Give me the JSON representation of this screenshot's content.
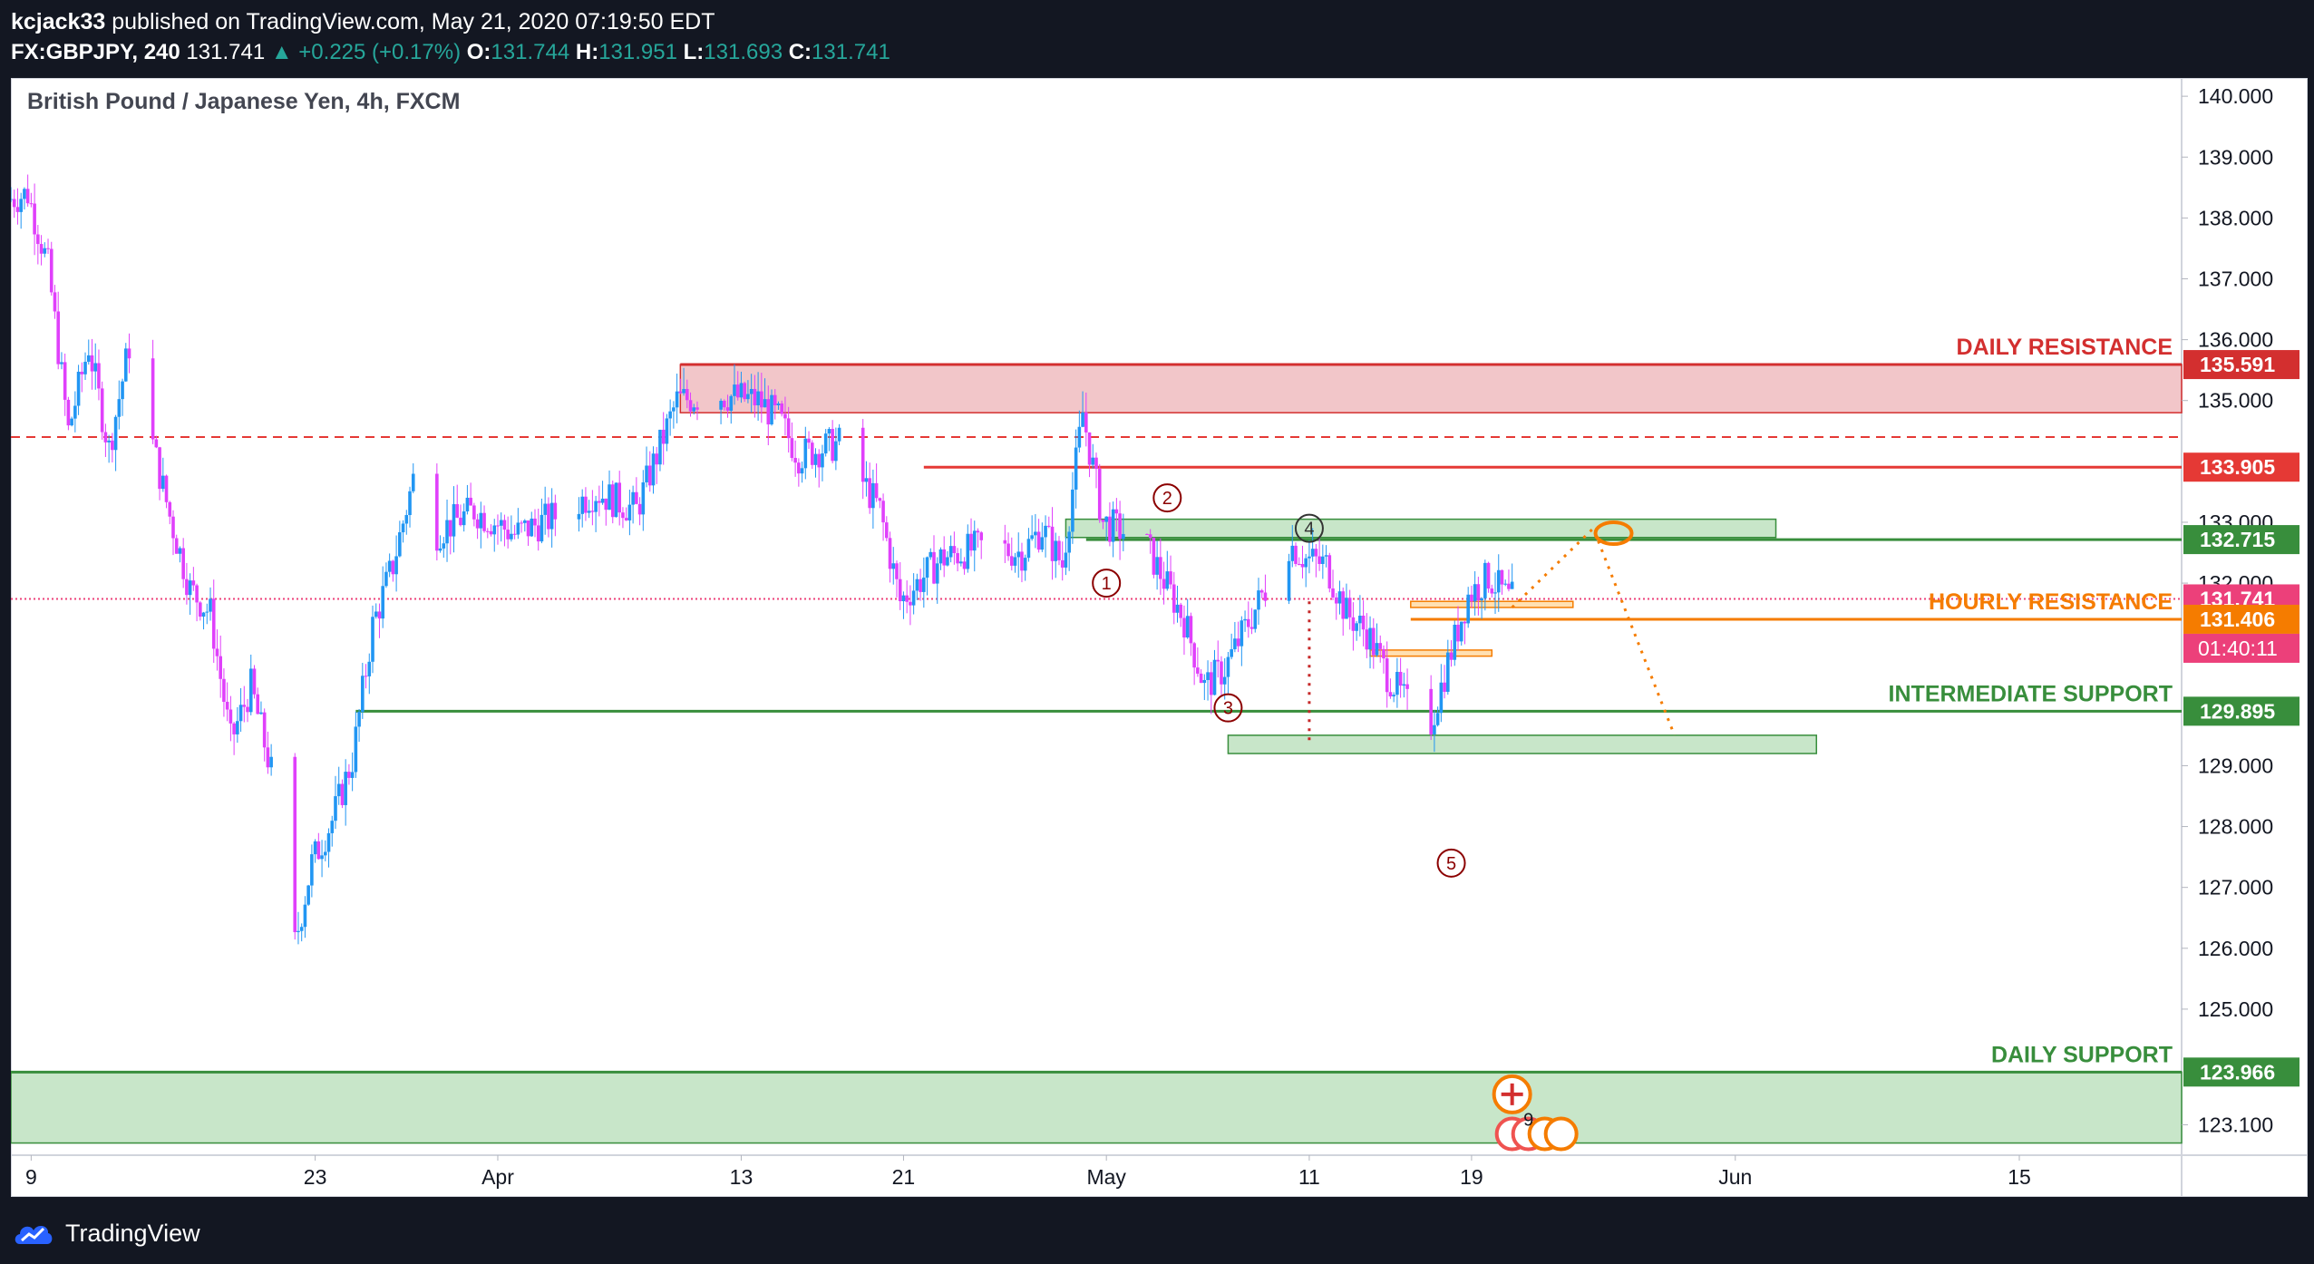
{
  "publish_line": {
    "author": "kcjack33",
    "rest": " published on TradingView.com, May 21, 2020 07:19:50 EDT"
  },
  "symbol_line": {
    "symbol": "FX:GBPJPY, 240",
    "last": "131.741",
    "change": "▲ +0.225 (+0.17%)",
    "o_label": "O:",
    "o_val": "131.744",
    "h_label": "H:",
    "h_val": "131.951",
    "l_label": "L:",
    "l_val": "131.693",
    "c_label": "C:",
    "c_val": "131.741"
  },
  "footer": {
    "brand": "TradingView"
  },
  "chart_data": {
    "type": "candlestick",
    "title": "British Pound / Japanese Yen, 4h, FXCM",
    "y_range": [
      122.6,
      140.3
    ],
    "y_ticks": [
      "140.000",
      "139.000",
      "138.000",
      "137.000",
      "136.000",
      "135.000",
      "133.000",
      "132.000",
      "129.000",
      "128.000",
      "127.000",
      "126.000",
      "125.000",
      "123.100"
    ],
    "x_range": [
      "2020-03-08",
      "2020-06-23"
    ],
    "x_ticks": [
      {
        "date": "2020-03-09",
        "label": "9"
      },
      {
        "date": "2020-03-23",
        "label": "23"
      },
      {
        "date": "2020-04-01",
        "label": "Apr"
      },
      {
        "date": "2020-04-13",
        "label": "13"
      },
      {
        "date": "2020-04-21",
        "label": "21"
      },
      {
        "date": "2020-05-01",
        "label": "May"
      },
      {
        "date": "2020-05-11",
        "label": "11"
      },
      {
        "date": "2020-05-19",
        "label": "19"
      },
      {
        "date": "2020-06-01",
        "label": "Jun"
      },
      {
        "date": "2020-06-15",
        "label": "15"
      }
    ],
    "price_path": [
      [
        "2020-03-08",
        138.3
      ],
      [
        "2020-03-09",
        138.4
      ],
      [
        "2020-03-10",
        137.2
      ],
      [
        "2020-03-11",
        134.5
      ],
      [
        "2020-03-12",
        135.9
      ],
      [
        "2020-03-13",
        134.2
      ],
      [
        "2020-03-14",
        135.9
      ],
      [
        "2020-03-16",
        133.1
      ],
      [
        "2020-03-17",
        131.9
      ],
      [
        "2020-03-18",
        131.5
      ],
      [
        "2020-03-19",
        129.4
      ],
      [
        "2020-03-20",
        130.3
      ],
      [
        "2020-03-21",
        128.9
      ],
      [
        "2020-03-22",
        125.8
      ],
      [
        "2020-03-23",
        127.4
      ],
      [
        "2020-03-24",
        128.1
      ],
      [
        "2020-03-25",
        129.1
      ],
      [
        "2020-03-26",
        131.3
      ],
      [
        "2020-03-27",
        132.3
      ],
      [
        "2020-03-28",
        133.7
      ],
      [
        "2020-03-29",
        132.8
      ],
      [
        "2020-03-31",
        133.2
      ],
      [
        "2020-04-02",
        132.8
      ],
      [
        "2020-04-04",
        133.1
      ],
      [
        "2020-04-06",
        133.5
      ],
      [
        "2020-04-08",
        133.2
      ],
      [
        "2020-04-10",
        135.0
      ],
      [
        "2020-04-12",
        135.1
      ],
      [
        "2020-04-14",
        135.0
      ],
      [
        "2020-04-15",
        134.7
      ],
      [
        "2020-04-16",
        134.1
      ],
      [
        "2020-04-18",
        134.3
      ],
      [
        "2020-04-20",
        133.2
      ],
      [
        "2020-04-21",
        131.7
      ],
      [
        "2020-04-23",
        132.4
      ],
      [
        "2020-04-25",
        132.6
      ],
      [
        "2020-04-27",
        132.5
      ],
      [
        "2020-04-28",
        132.9
      ],
      [
        "2020-04-29",
        132.3
      ],
      [
        "2020-04-30",
        134.8
      ],
      [
        "2020-05-01",
        133.0
      ],
      [
        "2020-05-03",
        132.7
      ],
      [
        "2020-05-05",
        131.4
      ],
      [
        "2020-05-06",
        130.3
      ],
      [
        "2020-05-07",
        130.6
      ],
      [
        "2020-05-09",
        131.9
      ],
      [
        "2020-05-10",
        132.7
      ],
      [
        "2020-05-11",
        132.4
      ],
      [
        "2020-05-12",
        132.3
      ],
      [
        "2020-05-13",
        131.5
      ],
      [
        "2020-05-14",
        131.2
      ],
      [
        "2020-05-15",
        130.5
      ],
      [
        "2020-05-16",
        130.0
      ],
      [
        "2020-05-17",
        129.5
      ],
      [
        "2020-05-18",
        130.7
      ],
      [
        "2020-05-19",
        131.8
      ],
      [
        "2020-05-20",
        132.1
      ],
      [
        "2020-05-21",
        131.741
      ]
    ],
    "zones": [
      {
        "name": "daily-resistance-zone",
        "from": "2020-04-10",
        "to": "2020-06-23",
        "y1": 134.8,
        "y2": 135.591,
        "color": "#f2c6c9",
        "border": "#d32f2f"
      },
      {
        "name": "intermediate-resistance-zone",
        "from": "2020-04-29",
        "to": "2020-06-03",
        "y1": 132.75,
        "y2": 133.05,
        "color": "#c8e6c9",
        "border": "#388e3c"
      },
      {
        "name": "lower-support-zone",
        "from": "2020-05-07",
        "to": "2020-06-05",
        "y1": 129.2,
        "y2": 129.5,
        "color": "#c8e6c9",
        "border": "#388e3c"
      },
      {
        "name": "daily-support-zone",
        "from": "2020-03-08",
        "to": "2020-06-23",
        "y1": 122.8,
        "y2": 123.966,
        "color": "#c8e6c9",
        "border": "#388e3c"
      },
      {
        "name": "hourly-resistance-box-1",
        "from": "2020-05-16",
        "to": "2020-05-24",
        "y1": 131.6,
        "y2": 131.7,
        "color": "#ffe0b2",
        "border": "#f57c00"
      },
      {
        "name": "hourly-resistance-box-2",
        "from": "2020-05-14",
        "to": "2020-05-20",
        "y1": 130.8,
        "y2": 130.9,
        "color": "#ffe0b2",
        "border": "#f57c00"
      }
    ],
    "levels": [
      {
        "name": "daily-resistance-line",
        "y": 135.591,
        "from": "2020-04-10",
        "to": "2020-06-23",
        "color": "#d32f2f",
        "style": "solid",
        "label": "DAILY RESISTANCE",
        "tag": "135.591",
        "tag_bg": "#d32f2f"
      },
      {
        "name": "dashed-resistance-line",
        "y": 134.4,
        "from": "2020-03-08",
        "to": "2020-06-23",
        "color": "#e53935",
        "style": "dashed"
      },
      {
        "name": "red-level-line",
        "y": 133.905,
        "from": "2020-04-22",
        "to": "2020-06-23",
        "color": "#e53935",
        "style": "solid",
        "tag": "133.905",
        "tag_bg": "#e53935"
      },
      {
        "name": "green-level-line",
        "y": 132.715,
        "from": "2020-04-30",
        "to": "2020-06-23",
        "color": "#388e3c",
        "style": "solid",
        "tag": "132.715",
        "tag_bg": "#388e3c"
      },
      {
        "name": "last-price-line",
        "y": 131.741,
        "from": "2020-03-08",
        "to": "2020-06-23",
        "color": "#ec407a",
        "style": "dotted",
        "tag": "131.741",
        "tag_bg": "#ec407a"
      },
      {
        "name": "hourly-resistance-line",
        "y": 131.406,
        "from": "2020-05-16",
        "to": "2020-06-23",
        "color": "#f57c00",
        "style": "solid",
        "label": "HOURLY RESISTANCE",
        "tag": "131.406",
        "tag_bg": "#f57c00",
        "countdown": "01:40:11"
      },
      {
        "name": "intermediate-support-line",
        "y": 129.895,
        "from": "2020-03-25",
        "to": "2020-06-23",
        "color": "#388e3c",
        "style": "solid",
        "label": "INTERMEDIATE SUPPORT",
        "tag": "129.895",
        "tag_bg": "#388e3c"
      },
      {
        "name": "daily-support-line",
        "y": 123.966,
        "from": "2020-03-08",
        "to": "2020-06-23",
        "color": "#388e3c",
        "style": "solid",
        "label": "DAILY SUPPORT",
        "tag": "123.966",
        "tag_bg": "#388e3c"
      }
    ],
    "wave_labels": [
      {
        "label": "1",
        "date": "2020-05-01",
        "y": 132.0,
        "color": "#8b0000"
      },
      {
        "label": "2",
        "date": "2020-05-04",
        "y": 133.4,
        "color": "#8b0000"
      },
      {
        "label": "3",
        "date": "2020-05-07",
        "y": 129.95,
        "color": "#8b0000"
      },
      {
        "label": "4",
        "date": "2020-05-11",
        "y": 132.9,
        "color": "#333333"
      },
      {
        "label": "5",
        "date": "2020-05-18",
        "y": 127.4,
        "color": "#8b0000"
      }
    ],
    "projections": [
      {
        "name": "red-drop-projection",
        "color": "#c62828",
        "points": [
          [
            "2020-05-11",
            131.7
          ],
          [
            "2020-05-11",
            129.4
          ]
        ]
      },
      {
        "name": "orange-projection",
        "color": "#f57c00",
        "points": [
          [
            "2020-05-21",
            131.6
          ],
          [
            "2020-05-25",
            132.9
          ],
          [
            "2020-05-29",
            129.5
          ]
        ]
      }
    ],
    "target_ellipse": {
      "date": "2020-05-26",
      "y": 132.82
    },
    "event_badge_count": "9"
  }
}
